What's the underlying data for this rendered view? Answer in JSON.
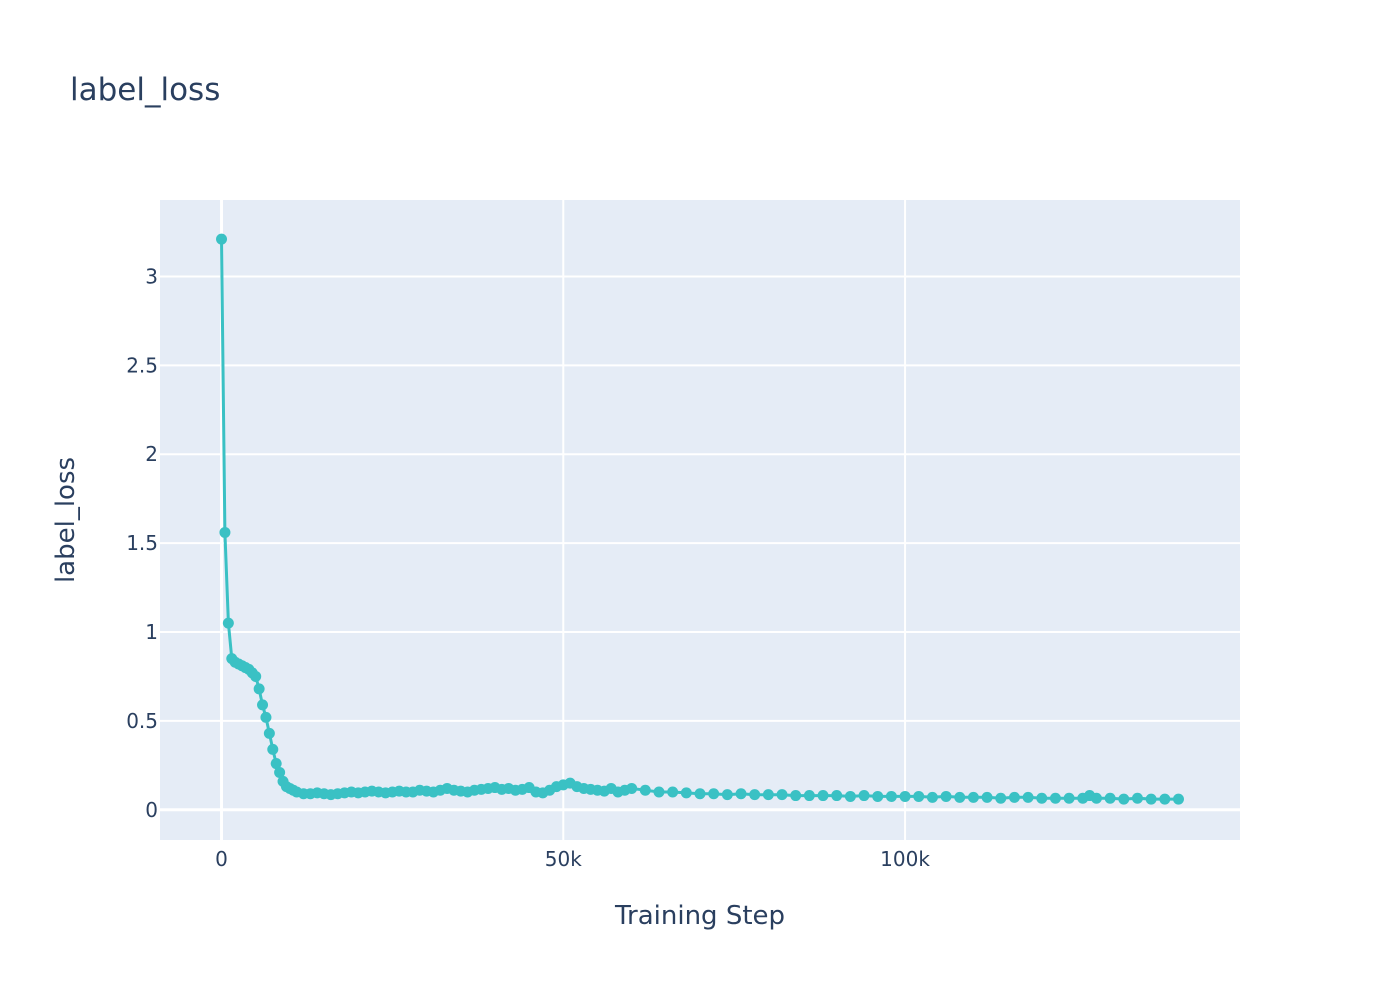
{
  "chart_data": {
    "type": "line",
    "title": "label_loss",
    "xlabel": "Training Step",
    "ylabel": "label_loss",
    "xlim": [
      -9000,
      149000
    ],
    "ylim": [
      -0.17,
      3.43
    ],
    "x_ticks": [
      {
        "value": 0,
        "label": "0"
      },
      {
        "value": 50000,
        "label": "50k"
      },
      {
        "value": 100000,
        "label": "100k"
      }
    ],
    "y_ticks": [
      {
        "value": 0,
        "label": "0"
      },
      {
        "value": 0.5,
        "label": "0.5"
      },
      {
        "value": 1,
        "label": "1"
      },
      {
        "value": 1.5,
        "label": "1.5"
      },
      {
        "value": 2,
        "label": "2"
      },
      {
        "value": 2.5,
        "label": "2.5"
      },
      {
        "value": 3,
        "label": "3"
      }
    ],
    "grid": true,
    "colors": {
      "line": "#3ac1c4",
      "plot_bg": "#e5ecf6",
      "grid": "#ffffff",
      "text": "#2a3f5f"
    },
    "series": [
      {
        "x": [
          0,
          500,
          1000,
          1500,
          2000,
          2500,
          3000,
          3500,
          4000,
          4500,
          5000,
          5500,
          6000,
          6500,
          7000,
          7500,
          8000,
          8500,
          9000,
          9500,
          10000,
          10500,
          11000,
          12000,
          13000,
          14000,
          15000,
          16000,
          17000,
          18000,
          19000,
          20000,
          21000,
          22000,
          23000,
          24000,
          25000,
          26000,
          27000,
          28000,
          29000,
          30000,
          31000,
          32000,
          33000,
          34000,
          35000,
          36000,
          37000,
          38000,
          39000,
          40000,
          41000,
          42000,
          43000,
          44000,
          45000,
          46000,
          47000,
          48000,
          49000,
          50000,
          51000,
          52000,
          53000,
          54000,
          55000,
          56000,
          57000,
          58000,
          59000,
          60000,
          62000,
          64000,
          66000,
          68000,
          70000,
          72000,
          74000,
          76000,
          78000,
          80000,
          82000,
          84000,
          86000,
          88000,
          90000,
          92000,
          94000,
          96000,
          98000,
          100000,
          102000,
          104000,
          106000,
          108000,
          110000,
          112000,
          114000,
          116000,
          118000,
          120000,
          122000,
          124000,
          126000,
          127000,
          128000,
          130000,
          132000,
          134000,
          136000,
          138000,
          140000
        ],
        "y": [
          3.21,
          1.56,
          1.05,
          0.85,
          0.83,
          0.82,
          0.81,
          0.8,
          0.79,
          0.77,
          0.75,
          0.68,
          0.59,
          0.52,
          0.43,
          0.34,
          0.26,
          0.21,
          0.16,
          0.13,
          0.12,
          0.11,
          0.1,
          0.09,
          0.09,
          0.095,
          0.09,
          0.085,
          0.09,
          0.095,
          0.1,
          0.095,
          0.1,
          0.105,
          0.1,
          0.095,
          0.1,
          0.105,
          0.1,
          0.1,
          0.11,
          0.105,
          0.1,
          0.11,
          0.12,
          0.11,
          0.105,
          0.1,
          0.11,
          0.115,
          0.12,
          0.125,
          0.115,
          0.12,
          0.11,
          0.115,
          0.125,
          0.1,
          0.095,
          0.11,
          0.13,
          0.14,
          0.15,
          0.13,
          0.12,
          0.115,
          0.11,
          0.105,
          0.12,
          0.1,
          0.11,
          0.12,
          0.11,
          0.1,
          0.1,
          0.095,
          0.09,
          0.09,
          0.085,
          0.09,
          0.085,
          0.085,
          0.085,
          0.08,
          0.08,
          0.08,
          0.08,
          0.075,
          0.08,
          0.075,
          0.075,
          0.075,
          0.075,
          0.07,
          0.075,
          0.07,
          0.07,
          0.07,
          0.065,
          0.07,
          0.07,
          0.065,
          0.065,
          0.065,
          0.065,
          0.08,
          0.065,
          0.065,
          0.06,
          0.065,
          0.06,
          0.06,
          0.06
        ]
      }
    ]
  }
}
